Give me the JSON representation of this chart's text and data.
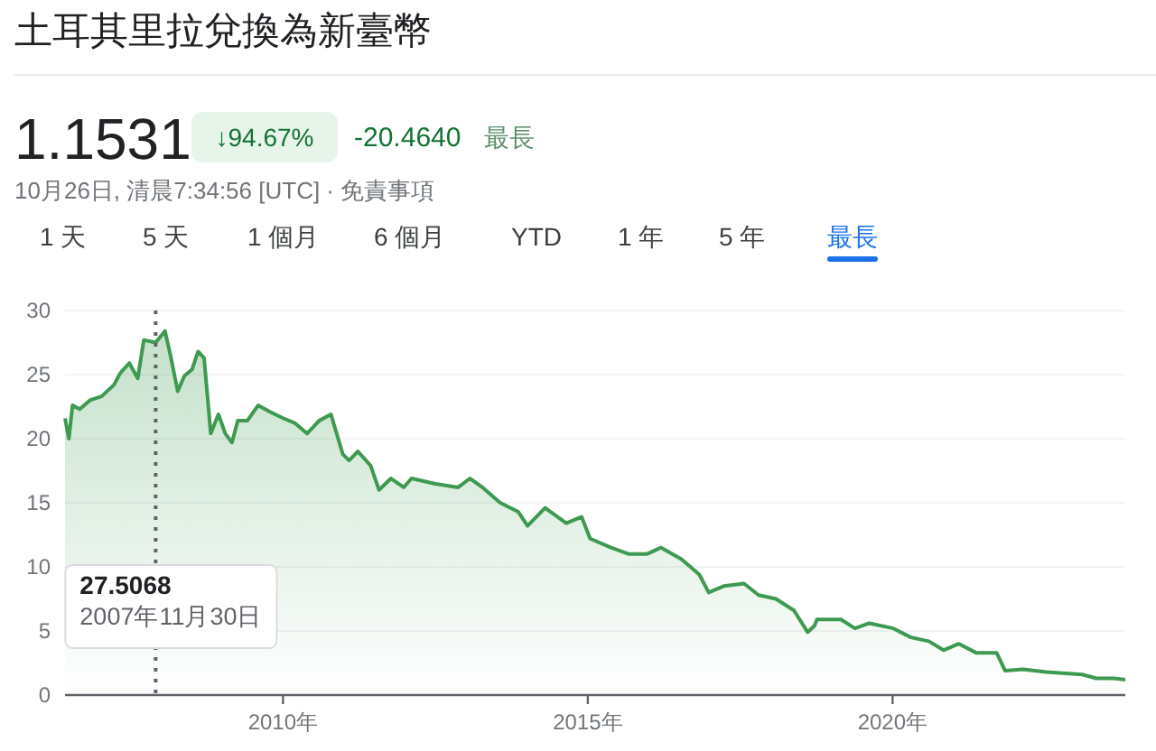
{
  "chart_data": {
    "type": "area",
    "title": "土耳其里拉兌換為新臺幣",
    "subtitle": "1.1531",
    "annotations": [
      "↓94.67%",
      "-20.4640",
      "最長",
      "10月26日, 清晨7:34:56 [UTC] · 免責事項",
      "1 天",
      "5 天",
      "1 個月",
      "6 個月",
      "YTD",
      "1 年",
      "5 年",
      "最長",
      "27.5068",
      "2007年11月30日"
    ],
    "x": [
      "2006-06-05",
      "2006-06-28",
      "2006-07-20",
      "2006-09-01",
      "2006-11-01",
      "2007-01-10",
      "2007-03-25",
      "2007-05-01",
      "2007-06-25",
      "2007-08-15",
      "2007-09-20",
      "2007-11-30",
      "2008-01-25",
      "2008-03-01",
      "2008-04-10",
      "2008-05-20",
      "2008-07-05",
      "2008-08-10",
      "2008-09-15",
      "2008-10-25",
      "2008-12-10",
      "2009-01-20",
      "2009-03-01",
      "2009-04-05",
      "2009-06-01",
      "2009-08-05",
      "2009-10-15",
      "2010-01-01",
      "2010-03-15",
      "2010-05-25",
      "2010-08-05",
      "2010-10-15",
      "2010-12-25",
      "2011-02-01",
      "2011-03-25",
      "2011-06-10",
      "2011-07-30",
      "2011-10-10",
      "2011-12-25",
      "2012-02-10",
      "2012-06-25",
      "2012-11-15",
      "2013-01-25",
      "2013-04-10",
      "2013-07-25",
      "2013-11-10",
      "2014-01-05",
      "2014-04-20",
      "2014-08-25",
      "2014-11-25",
      "2015-01-15",
      "2015-05-20",
      "2015-09-05",
      "2015-12-20",
      "2016-03-15",
      "2016-07-15",
      "2016-10-30",
      "2016-12-25",
      "2017-03-25",
      "2017-07-25",
      "2017-10-20",
      "2018-02-01",
      "2018-05-20",
      "2018-08-10",
      "2018-09-20",
      "2018-10-05",
      "2019-02-25",
      "2019-05-20",
      "2019-08-15",
      "2020-01-05",
      "2020-04-20",
      "2020-08-05",
      "2020-11-01",
      "2021-02-01",
      "2021-05-15",
      "2021-09-15",
      "2021-11-05",
      "2022-02-20",
      "2022-07-10",
      "2023-02-10",
      "2023-05-05",
      "2023-08-20",
      "2023-10-26"
    ],
    "series": [
      {
        "color": "#3d9a50",
        "values": [
          21.6,
          20.0,
          22.6,
          22.3,
          23.0,
          23.3,
          24.2,
          25.1,
          25.9,
          24.7,
          27.7,
          27.5,
          28.4,
          26.3,
          23.7,
          24.9,
          25.4,
          26.8,
          26.3,
          20.4,
          21.9,
          20.4,
          19.7,
          21.4,
          21.4,
          22.6,
          22.1,
          21.6,
          21.2,
          20.4,
          21.4,
          21.9,
          18.8,
          18.3,
          19.0,
          17.9,
          16.0,
          16.9,
          16.2,
          16.9,
          16.5,
          16.2,
          16.9,
          16.2,
          15.0,
          14.3,
          13.2,
          14.6,
          13.4,
          13.9,
          12.2,
          11.5,
          11.0,
          11.0,
          11.5,
          10.6,
          9.4,
          8.0,
          8.5,
          8.7,
          7.8,
          7.5,
          6.6,
          4.9,
          5.4,
          5.9,
          5.9,
          5.2,
          5.6,
          5.2,
          4.5,
          4.2,
          3.5,
          4.0,
          3.3,
          3.3,
          1.9,
          2.0,
          1.8,
          1.6,
          1.3,
          1.3,
          1.2
        ]
      }
    ],
    "xlim": [
      "2006-06-05",
      "2023-10-26"
    ],
    "xticks": [
      {
        "value": "2010-01-01",
        "label": "2010年"
      },
      {
        "value": "2015-01-01",
        "label": "2015年"
      },
      {
        "value": "2020-01-01",
        "label": "2020年"
      }
    ],
    "ylim": [
      0,
      30
    ],
    "yticks": [
      0,
      5,
      10,
      15,
      20,
      25,
      30
    ],
    "grid": "y",
    "ref_lines": [
      {
        "axis": "x",
        "value": "2007-11-30",
        "color": "#5f6368",
        "line_style": "dotted"
      }
    ]
  }
}
